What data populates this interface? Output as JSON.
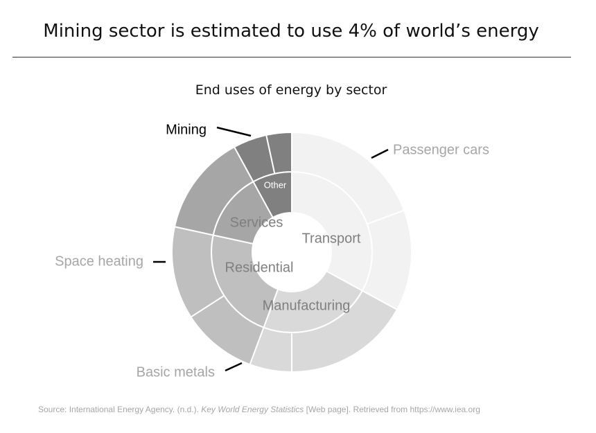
{
  "title": "Mining sector is estimated to use 4% of world’s energy",
  "source": {
    "prefix": "Source: International Energy Agency. (n.d.). ",
    "italic": "Key World Energy Statistics",
    "suffix": " [Web page]. Retrieved from https://www.iea.org"
  },
  "colors": {
    "transport": "#f2f2f2",
    "manufacturing": "#d9d9d9",
    "residential": "#bfbfbf",
    "services": "#a6a6a6",
    "other": "#808080",
    "separator": "#ffffff",
    "callout_text_light": "#a6a6a6",
    "callout_text_dark": "#000000",
    "inner_label": "#7f7f7f"
  },
  "chart_data": {
    "type": "pie",
    "variant": "nested-donut",
    "title": "End uses of energy by sector",
    "inner_ring": [
      {
        "name": "Transport",
        "value": 29
      },
      {
        "name": "Manufacturing",
        "value": 20
      },
      {
        "name": "Residential",
        "value": 20
      },
      {
        "name": "Services",
        "value": 12
      },
      {
        "name": "Other",
        "value": 7
      }
    ],
    "outer_ring": [
      {
        "sector": "Transport",
        "name": "Passenger cars",
        "value": 17,
        "labeled": true
      },
      {
        "sector": "Transport",
        "name": "",
        "value": 12,
        "labeled": false
      },
      {
        "sector": "Manufacturing",
        "name": "",
        "value": 15,
        "labeled": false
      },
      {
        "sector": "Manufacturing",
        "name": "Basic metals",
        "value": 5,
        "labeled": true
      },
      {
        "sector": "Residential",
        "name": "",
        "value": 9,
        "labeled": false
      },
      {
        "sector": "Residential",
        "name": "Space heating",
        "value": 11,
        "labeled": true
      },
      {
        "sector": "Services",
        "name": "",
        "value": 12,
        "labeled": false
      },
      {
        "sector": "Other",
        "name": "Mining",
        "value": 4,
        "labeled": true
      },
      {
        "sector": "Other",
        "name": "",
        "value": 3,
        "labeled": false
      }
    ]
  }
}
